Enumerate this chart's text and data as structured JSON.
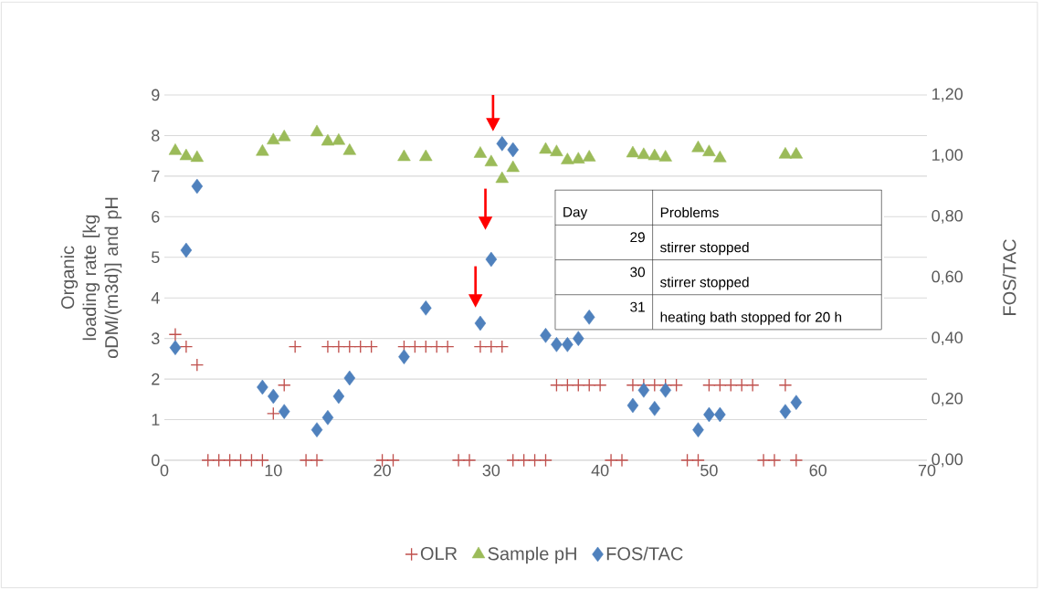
{
  "chart_data": {
    "type": "scatter",
    "xlim": [
      0,
      70
    ],
    "xticks": [
      0,
      10,
      20,
      30,
      40,
      50,
      60,
      70
    ],
    "ylim": [
      0,
      9
    ],
    "yticks": [
      0,
      1,
      2,
      3,
      4,
      5,
      6,
      7,
      8,
      9
    ],
    "y2lim": [
      0,
      1.2
    ],
    "y2ticks": [
      {
        "value": 0,
        "label": "0,00"
      },
      {
        "value": 0.2,
        "label": "0,20"
      },
      {
        "value": 0.4,
        "label": "0,40"
      },
      {
        "value": 0.6,
        "label": "0,60"
      },
      {
        "value": 0.8,
        "label": "0,80"
      },
      {
        "value": 1.0,
        "label": "1,00"
      },
      {
        "value": 1.2,
        "label": "1,20"
      }
    ],
    "ylabel": "Organic loading rate [kg oDM/(m3d)] and pH",
    "y2label": "FOS/TAC",
    "grid": "y",
    "legend": "bottom",
    "series": [
      {
        "name": "OLR",
        "color": "#c0504d",
        "marker": "cross",
        "x": [
          1,
          2,
          3,
          4,
          5,
          6,
          7,
          8,
          9,
          10,
          11,
          12,
          13,
          14,
          15,
          16,
          17,
          18,
          19,
          20,
          21,
          22,
          23,
          24,
          25,
          26,
          27,
          28,
          29,
          30,
          31,
          32,
          33,
          34,
          35,
          36,
          37,
          38,
          39,
          40,
          41,
          42,
          43,
          44,
          45,
          46,
          47,
          48,
          49,
          50,
          51,
          52,
          53,
          54,
          55,
          56,
          57,
          58
        ],
        "values": [
          3.1,
          2.8,
          2.35,
          0,
          0,
          0,
          0,
          0,
          0,
          1.15,
          1.85,
          2.8,
          0,
          0,
          2.8,
          2.8,
          2.8,
          2.8,
          2.8,
          0,
          0,
          2.8,
          2.8,
          2.8,
          2.8,
          2.8,
          0,
          0,
          2.8,
          2.8,
          2.8,
          0,
          0,
          0,
          0,
          1.85,
          1.85,
          1.85,
          1.85,
          1.85,
          0,
          0,
          1.85,
          1.85,
          1.85,
          1.85,
          1.85,
          0,
          0,
          1.85,
          1.85,
          1.85,
          1.85,
          1.85,
          0,
          0,
          1.85,
          0
        ]
      },
      {
        "name": "Sample pH",
        "color": "#9bbb59",
        "marker": "triangle",
        "x": [
          1,
          2,
          3,
          9,
          10,
          11,
          14,
          15,
          16,
          17,
          22,
          24,
          29,
          30,
          31,
          32,
          35,
          36,
          37,
          38,
          39,
          43,
          44,
          45,
          46,
          49,
          50,
          51,
          57,
          58
        ],
        "values": [
          7.62,
          7.49,
          7.45,
          7.6,
          7.88,
          7.96,
          8.08,
          7.85,
          7.87,
          7.62,
          7.47,
          7.47,
          7.55,
          7.34,
          6.93,
          7.2,
          7.65,
          7.59,
          7.39,
          7.41,
          7.46,
          7.56,
          7.52,
          7.49,
          7.46,
          7.69,
          7.59,
          7.44,
          7.53,
          7.53
        ]
      },
      {
        "name": "FOS/TAC",
        "color": "#4f81bd",
        "marker": "diamond",
        "axis": "y2",
        "x": [
          1,
          2,
          3,
          9,
          10,
          11,
          14,
          15,
          16,
          17,
          22,
          24,
          29,
          30,
          31,
          32,
          35,
          36,
          37,
          38,
          39,
          43,
          44,
          45,
          46,
          49,
          50,
          51,
          57,
          58
        ],
        "values": [
          0.37,
          0.69,
          0.9,
          0.24,
          0.21,
          0.16,
          0.1,
          0.14,
          0.21,
          0.27,
          0.34,
          0.5,
          0.45,
          0.66,
          1.04,
          1.02,
          0.41,
          0.38,
          0.38,
          0.4,
          0.47,
          0.18,
          0.23,
          0.17,
          0.23,
          0.1,
          0.15,
          0.15,
          0.16,
          0.19
        ]
      }
    ],
    "annotations": [
      "Day",
      "Problems",
      "29",
      "stirrer stopped",
      "30",
      "stirrer stopped",
      "31",
      "heating bath stopped for 20 h"
    ]
  }
}
